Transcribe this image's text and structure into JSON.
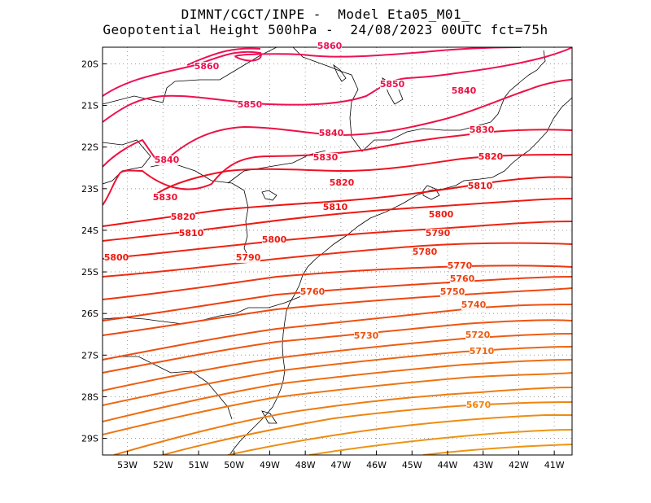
{
  "header": {
    "line1": "DIMNT/CGCT/INPE -  Model Eta05_M01_",
    "line2": "Geopotential Height 500hPa -  24/08/2023 00UTC fct=75h"
  },
  "map": {
    "lon_range": [
      -53.7,
      -40.5
    ],
    "lat_range": [
      -29.4,
      -19.6
    ],
    "lat_ticks": [
      "20S",
      "21S",
      "22S",
      "23S",
      "24S",
      "25S",
      "26S",
      "27S",
      "28S",
      "29S"
    ],
    "lon_ticks": [
      "53W",
      "52W",
      "51W",
      "50W",
      "49W",
      "48W",
      "47W",
      "46W",
      "45W",
      "44W",
      "43W",
      "42W",
      "41W"
    ],
    "colors": {
      "gridline": "#999999",
      "coast": "#000000",
      "c5860": "#ee1155",
      "c5850": "#ee1150",
      "c5840": "#ee1144",
      "c5830": "#ee1133",
      "c5820": "#ee1122",
      "c5810": "#ee1111",
      "c5800": "#ee1a10",
      "c5790": "#ee2210",
      "c5780": "#ee2c10",
      "c5770": "#ee3510",
      "c5760": "#ee3f10",
      "c5750": "#ee4810",
      "c5740": "#ee5010",
      "c5730": "#ee5510",
      "c5720": "#ee5c10",
      "c5710": "#ee6510",
      "c5700": "#ee6c10",
      "c5690": "#ee7410",
      "c5680": "#ee7c10",
      "c5670": "#ee8410",
      "c5660": "#ee8c10",
      "c5650": "#ee9410"
    },
    "contour_labels": [
      {
        "text": "5860",
        "color": "#ee1155"
      },
      {
        "text": "5860",
        "color": "#ee1155"
      },
      {
        "text": "5850",
        "color": "#ee1150"
      },
      {
        "text": "5850",
        "color": "#ee1150"
      },
      {
        "text": "5840",
        "color": "#ee1144"
      },
      {
        "text": "5840",
        "color": "#ee1144"
      },
      {
        "text": "5840",
        "color": "#ee1144"
      },
      {
        "text": "5830",
        "color": "#ee1133"
      },
      {
        "text": "5830",
        "color": "#ee1133"
      },
      {
        "text": "5830",
        "color": "#ee1133"
      },
      {
        "text": "5820",
        "color": "#ee1122"
      },
      {
        "text": "5820",
        "color": "#ee1122"
      },
      {
        "text": "5820",
        "color": "#ee1122"
      },
      {
        "text": "5810",
        "color": "#ee1111"
      },
      {
        "text": "5810",
        "color": "#ee1111"
      },
      {
        "text": "5810",
        "color": "#ee1111"
      },
      {
        "text": "5800",
        "color": "#ee1a10"
      },
      {
        "text": "5800",
        "color": "#ee1a10"
      },
      {
        "text": "5800",
        "color": "#ee1a10"
      },
      {
        "text": "5790",
        "color": "#ee2210"
      },
      {
        "text": "5790",
        "color": "#ee2210"
      },
      {
        "text": "5780",
        "color": "#ee2c10"
      },
      {
        "text": "5770",
        "color": "#ee3510"
      },
      {
        "text": "5760",
        "color": "#ee3f10"
      },
      {
        "text": "5760",
        "color": "#ee3f10"
      },
      {
        "text": "5750",
        "color": "#ee4810"
      },
      {
        "text": "5740",
        "color": "#ee5010"
      },
      {
        "text": "5730",
        "color": "#ee5510"
      },
      {
        "text": "5720",
        "color": "#ee5c10"
      },
      {
        "text": "5710",
        "color": "#ee6510"
      },
      {
        "text": "5670",
        "color": "#ee8410"
      }
    ]
  }
}
